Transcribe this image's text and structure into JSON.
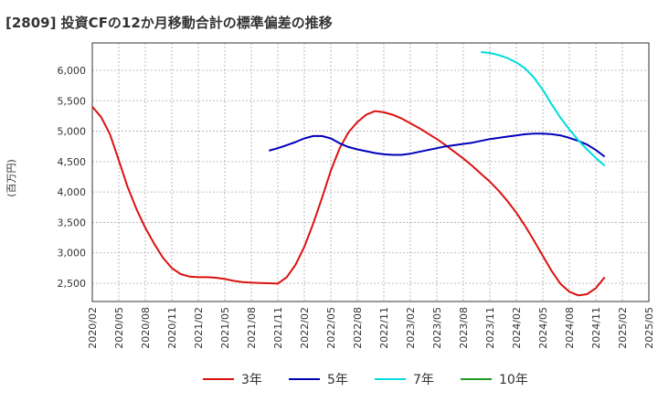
{
  "chart_data": {
    "type": "line",
    "title": "[2809]  投資CFの12か月移動合計の標準偏差の推移",
    "ylabel": "(百万円)",
    "xlabel": "",
    "ylim": [
      2200,
      6450
    ],
    "yticks": [
      2500,
      3000,
      3500,
      4000,
      4500,
      5000,
      5500,
      6000
    ],
    "ytick_labels": [
      "2,500",
      "3,000",
      "3,500",
      "4,000",
      "4,500",
      "5,000",
      "5,500",
      "6,000"
    ],
    "xlim": [
      "2020-02",
      "2025-05"
    ],
    "xtick_labels": [
      "2020/02",
      "2020/05",
      "2020/08",
      "2020/11",
      "2021/02",
      "2021/05",
      "2021/08",
      "2021/11",
      "2022/02",
      "2022/05",
      "2022/08",
      "2022/11",
      "2023/02",
      "2023/05",
      "2023/08",
      "2023/11",
      "2024/02",
      "2024/05",
      "2024/08",
      "2024/11",
      "2025/02",
      "2025/05"
    ],
    "grid": true,
    "legend_position": "bottom",
    "series": [
      {
        "name": "3年",
        "color": "#dd1111",
        "points": [
          [
            "2020-02",
            5400
          ],
          [
            "2020-03",
            5230
          ],
          [
            "2020-04",
            4950
          ],
          [
            "2020-05",
            4520
          ],
          [
            "2020-06",
            4080
          ],
          [
            "2020-07",
            3720
          ],
          [
            "2020-08",
            3410
          ],
          [
            "2020-09",
            3150
          ],
          [
            "2020-10",
            2920
          ],
          [
            "2020-11",
            2750
          ],
          [
            "2020-12",
            2650
          ],
          [
            "2021-01",
            2610
          ],
          [
            "2021-02",
            2600
          ],
          [
            "2021-03",
            2600
          ],
          [
            "2021-04",
            2590
          ],
          [
            "2021-05",
            2570
          ],
          [
            "2021-06",
            2540
          ],
          [
            "2021-07",
            2520
          ],
          [
            "2021-08",
            2510
          ],
          [
            "2021-09",
            2505
          ],
          [
            "2021-10",
            2500
          ],
          [
            "2021-11",
            2495
          ],
          [
            "2021-12",
            2600
          ],
          [
            "2022-01",
            2800
          ],
          [
            "2022-02",
            3100
          ],
          [
            "2022-03",
            3480
          ],
          [
            "2022-04",
            3900
          ],
          [
            "2022-05",
            4350
          ],
          [
            "2022-06",
            4720
          ],
          [
            "2022-07",
            4980
          ],
          [
            "2022-08",
            5150
          ],
          [
            "2022-09",
            5270
          ],
          [
            "2022-10",
            5330
          ],
          [
            "2022-11",
            5310
          ],
          [
            "2022-12",
            5270
          ],
          [
            "2023-01",
            5210
          ],
          [
            "2023-02",
            5130
          ],
          [
            "2023-03",
            5050
          ],
          [
            "2023-04",
            4960
          ],
          [
            "2023-05",
            4870
          ],
          [
            "2023-06",
            4770
          ],
          [
            "2023-07",
            4660
          ],
          [
            "2023-08",
            4550
          ],
          [
            "2023-09",
            4430
          ],
          [
            "2023-10",
            4300
          ],
          [
            "2023-11",
            4170
          ],
          [
            "2023-12",
            4020
          ],
          [
            "2024-01",
            3850
          ],
          [
            "2024-02",
            3660
          ],
          [
            "2024-03",
            3440
          ],
          [
            "2024-04",
            3200
          ],
          [
            "2024-05",
            2950
          ],
          [
            "2024-06",
            2700
          ],
          [
            "2024-07",
            2490
          ],
          [
            "2024-08",
            2360
          ],
          [
            "2024-09",
            2300
          ],
          [
            "2024-10",
            2320
          ],
          [
            "2024-11",
            2420
          ],
          [
            "2024-12",
            2600
          ]
        ]
      },
      {
        "name": "5年",
        "color": "#0000bb",
        "points": [
          [
            "2021-10",
            4680
          ],
          [
            "2021-11",
            4720
          ],
          [
            "2021-12",
            4770
          ],
          [
            "2022-01",
            4820
          ],
          [
            "2022-02",
            4880
          ],
          [
            "2022-03",
            4920
          ],
          [
            "2022-04",
            4920
          ],
          [
            "2022-05",
            4880
          ],
          [
            "2022-06",
            4800
          ],
          [
            "2022-07",
            4740
          ],
          [
            "2022-08",
            4700
          ],
          [
            "2022-09",
            4670
          ],
          [
            "2022-10",
            4640
          ],
          [
            "2022-11",
            4620
          ],
          [
            "2022-12",
            4610
          ],
          [
            "2023-01",
            4610
          ],
          [
            "2023-02",
            4630
          ],
          [
            "2023-03",
            4660
          ],
          [
            "2023-04",
            4690
          ],
          [
            "2023-05",
            4720
          ],
          [
            "2023-06",
            4750
          ],
          [
            "2023-07",
            4770
          ],
          [
            "2023-08",
            4790
          ],
          [
            "2023-09",
            4810
          ],
          [
            "2023-10",
            4840
          ],
          [
            "2023-11",
            4870
          ],
          [
            "2023-12",
            4890
          ],
          [
            "2024-01",
            4910
          ],
          [
            "2024-02",
            4930
          ],
          [
            "2024-03",
            4950
          ],
          [
            "2024-04",
            4960
          ],
          [
            "2024-05",
            4960
          ],
          [
            "2024-06",
            4950
          ],
          [
            "2024-07",
            4930
          ],
          [
            "2024-08",
            4890
          ],
          [
            "2024-09",
            4840
          ],
          [
            "2024-10",
            4780
          ],
          [
            "2024-11",
            4690
          ],
          [
            "2024-12",
            4580
          ]
        ]
      },
      {
        "name": "7年",
        "color": "#00dddd",
        "points": [
          [
            "2023-10",
            6300
          ],
          [
            "2023-11",
            6285
          ],
          [
            "2023-12",
            6250
          ],
          [
            "2024-01",
            6200
          ],
          [
            "2024-02",
            6130
          ],
          [
            "2024-03",
            6030
          ],
          [
            "2024-04",
            5880
          ],
          [
            "2024-05",
            5680
          ],
          [
            "2024-06",
            5440
          ],
          [
            "2024-07",
            5220
          ],
          [
            "2024-08",
            5030
          ],
          [
            "2024-09",
            4850
          ],
          [
            "2024-10",
            4700
          ],
          [
            "2024-11",
            4560
          ],
          [
            "2024-12",
            4430
          ]
        ]
      },
      {
        "name": "10年",
        "color": "#229922",
        "points": []
      }
    ]
  }
}
